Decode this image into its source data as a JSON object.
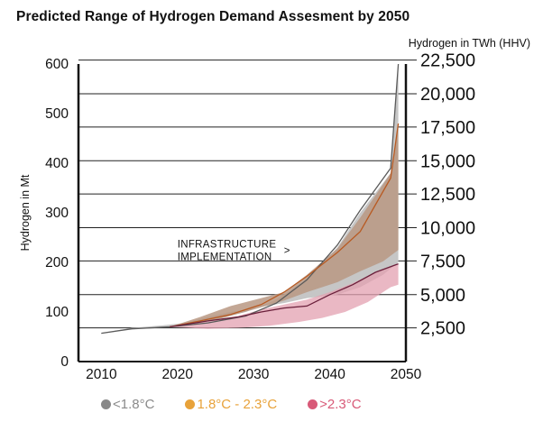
{
  "chart_data": {
    "type": "area",
    "title": "Predicted Range of Hydrogen Demand Assesment by 2050",
    "ylabel_left": "Hydrogen in Mt",
    "ylabel_right": "Hydrogen in TWh (HHV)",
    "x_ticks": [
      "2010",
      "2020",
      "2030",
      "2040",
      "2050"
    ],
    "xlim": [
      2007,
      2050
    ],
    "ylim": [
      0,
      600
    ],
    "y_ticks_left": [
      "0",
      "100",
      "200",
      "300",
      "400",
      "500",
      "600"
    ],
    "y_ticks_right": [
      "2,500",
      "5,000",
      "7,500",
      "10,000",
      "12,500",
      "15,000",
      "17,500",
      "20,000",
      "22,500"
    ],
    "y_ticks_right_mt": [
      68,
      135,
      203,
      270,
      338,
      405,
      473,
      540,
      608
    ],
    "annotation": {
      "lines": [
        "INFRASTRUCTURE",
        "IMPLEMENTATION"
      ],
      "arrow": ">",
      "x": 2020,
      "y": 230
    },
    "series": [
      {
        "name": "<1.8°C",
        "color": "#c6c6c6",
        "line_color": "#5a5a5a",
        "upper": [
          [
            2010,
            57
          ],
          [
            2014,
            66
          ],
          [
            2019,
            70
          ],
          [
            2024,
            82
          ],
          [
            2029,
            100
          ],
          [
            2033,
            125
          ],
          [
            2037,
            165
          ],
          [
            2041,
            230
          ],
          [
            2044,
            300
          ],
          [
            2048,
            380
          ],
          [
            2049,
            600
          ]
        ],
        "lower": [
          [
            2049,
            200
          ],
          [
            2047,
            175
          ],
          [
            2044,
            150
          ],
          [
            2041,
            135
          ],
          [
            2037,
            128
          ],
          [
            2034,
            118
          ],
          [
            2030,
            108
          ],
          [
            2027,
            100
          ],
          [
            2024,
            90
          ],
          [
            2021,
            78
          ],
          [
            2018,
            73
          ],
          [
            2014,
            68
          ],
          [
            2010,
            57
          ]
        ],
        "line": [
          [
            2010,
            57
          ],
          [
            2014,
            66
          ],
          [
            2019,
            70
          ],
          [
            2024,
            78
          ],
          [
            2029,
            92
          ],
          [
            2033,
            118
          ],
          [
            2037,
            165
          ],
          [
            2041,
            235
          ],
          [
            2044,
            305
          ],
          [
            2048,
            390
          ],
          [
            2049,
            600
          ]
        ]
      },
      {
        "name": "1.8°C - 2.3°C",
        "color": "#e8a23a",
        "fill_color": "#b99882",
        "line_color": "#b85a22",
        "upper": [
          [
            2019,
            70
          ],
          [
            2023,
            90
          ],
          [
            2027,
            112
          ],
          [
            2031,
            128
          ],
          [
            2034,
            140
          ],
          [
            2037,
            175
          ],
          [
            2041,
            228
          ],
          [
            2044,
            290
          ],
          [
            2048,
            380
          ],
          [
            2049,
            480
          ]
        ],
        "lower": [
          [
            2049,
            225
          ],
          [
            2047,
            202
          ],
          [
            2044,
            182
          ],
          [
            2041,
            160
          ],
          [
            2037,
            140
          ],
          [
            2034,
            123
          ],
          [
            2030,
            105
          ],
          [
            2026,
            88
          ],
          [
            2023,
            78
          ],
          [
            2019,
            70
          ]
        ],
        "line": [
          [
            2019,
            70
          ],
          [
            2023,
            82
          ],
          [
            2027,
            95
          ],
          [
            2031,
            115
          ],
          [
            2034,
            140
          ],
          [
            2037,
            172
          ],
          [
            2041,
            220
          ],
          [
            2044,
            262
          ],
          [
            2048,
            370
          ],
          [
            2049,
            480
          ]
        ]
      },
      {
        "name": ">2.3°C",
        "color": "#d85a78",
        "fill_color": "#e3a0b0",
        "line_color": "#6a1f3a",
        "upper": [
          [
            2019,
            70
          ],
          [
            2024,
            82
          ],
          [
            2028,
            92
          ],
          [
            2031,
            105
          ],
          [
            2034,
            115
          ],
          [
            2037,
            125
          ],
          [
            2040,
            140
          ],
          [
            2043,
            158
          ],
          [
            2046,
            180
          ],
          [
            2049,
            197
          ]
        ],
        "lower": [
          [
            2049,
            155
          ],
          [
            2048,
            150
          ],
          [
            2045,
            120
          ],
          [
            2042,
            100
          ],
          [
            2039,
            88
          ],
          [
            2036,
            80
          ],
          [
            2032,
            72
          ],
          [
            2028,
            68
          ],
          [
            2024,
            66
          ],
          [
            2019,
            70
          ]
        ],
        "line": [
          [
            2019,
            70
          ],
          [
            2024,
            82
          ],
          [
            2028,
            90
          ],
          [
            2031,
            100
          ],
          [
            2034,
            108
          ],
          [
            2037,
            112
          ],
          [
            2040,
            135
          ],
          [
            2043,
            155
          ],
          [
            2046,
            180
          ],
          [
            2049,
            197
          ]
        ]
      }
    ]
  }
}
